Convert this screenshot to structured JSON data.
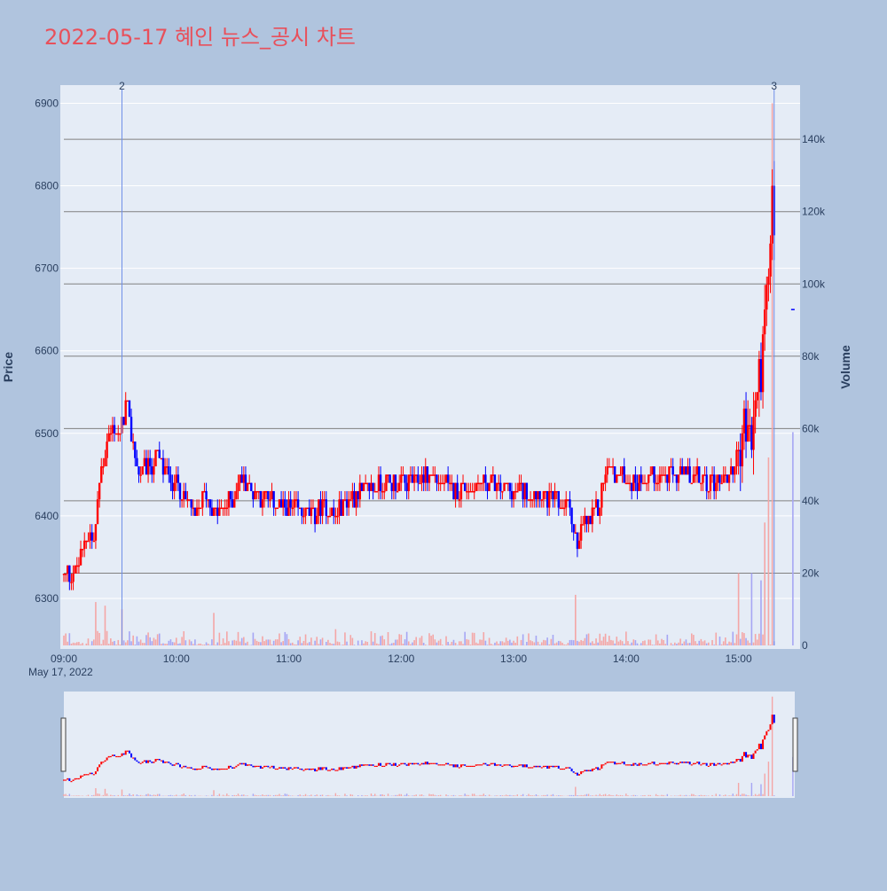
{
  "page": {
    "title": "2022-05-17 혜인 뉴스_공시 차트"
  },
  "colors": {
    "background": "#b0c4de",
    "plot_bg": "#e5ecf6",
    "title": "#e8505b",
    "up": "#ff0000",
    "down": "#0000ff",
    "volume_up": "#f4a6a6",
    "volume_down": "#a6a6f4",
    "marker_line": "#6f8fe8",
    "volume_grid": "#808080"
  },
  "chart_data": {
    "type": "candlestick",
    "xlabel": "",
    "ylabel": "Price",
    "y2label": "Volume",
    "date_label": "May 17, 2022",
    "x_ticks": [
      "09:00",
      "10:00",
      "11:00",
      "12:00",
      "13:00",
      "14:00",
      "15:00"
    ],
    "y_ticks": [
      6300,
      6400,
      6500,
      6600,
      6700,
      6800,
      6900
    ],
    "y2_ticks": [
      "0",
      "20k",
      "40k",
      "60k",
      "80k",
      "100k",
      "120k",
      "140k"
    ],
    "y2_values": [
      0,
      20000,
      40000,
      60000,
      80000,
      100000,
      120000,
      140000
    ],
    "ylim": [
      6243,
      6922
    ],
    "y2lim": [
      0,
      155000
    ],
    "xlim": [
      "09:00",
      "15:30"
    ],
    "markers": [
      {
        "label": "2",
        "time": "09:31"
      },
      {
        "label": "3",
        "time": "15:19"
      }
    ],
    "anchors": [
      [
        "09:00",
        6330
      ],
      [
        "09:04",
        6330
      ],
      [
        "09:08",
        6340
      ],
      [
        "09:12",
        6380
      ],
      [
        "09:16",
        6370
      ],
      [
        "09:20",
        6460
      ],
      [
        "09:23",
        6490
      ],
      [
        "09:27",
        6510
      ],
      [
        "09:30",
        6490
      ],
      [
        "09:33",
        6540
      ],
      [
        "09:36",
        6500
      ],
      [
        "09:40",
        6450
      ],
      [
        "09:45",
        6460
      ],
      [
        "09:50",
        6470
      ],
      [
        "09:55",
        6450
      ],
      [
        "10:00",
        6440
      ],
      [
        "10:05",
        6420
      ],
      [
        "10:10",
        6400
      ],
      [
        "10:15",
        6430
      ],
      [
        "10:20",
        6400
      ],
      [
        "10:25",
        6410
      ],
      [
        "10:30",
        6420
      ],
      [
        "10:35",
        6450
      ],
      [
        "10:40",
        6430
      ],
      [
        "10:50",
        6420
      ],
      [
        "11:00",
        6410
      ],
      [
        "11:10",
        6400
      ],
      [
        "11:20",
        6410
      ],
      [
        "11:25",
        6400
      ],
      [
        "11:30",
        6420
      ],
      [
        "11:40",
        6430
      ],
      [
        "11:50",
        6440
      ],
      [
        "12:00",
        6440
      ],
      [
        "12:15",
        6450
      ],
      [
        "12:30",
        6430
      ],
      [
        "12:45",
        6440
      ],
      [
        "13:00",
        6430
      ],
      [
        "13:10",
        6430
      ],
      [
        "13:20",
        6420
      ],
      [
        "13:30",
        6410
      ],
      [
        "13:34",
        6360
      ],
      [
        "13:37",
        6390
      ],
      [
        "13:40",
        6390
      ],
      [
        "13:45",
        6410
      ],
      [
        "13:50",
        6460
      ],
      [
        "13:55",
        6450
      ],
      [
        "14:05",
        6440
      ],
      [
        "14:15",
        6450
      ],
      [
        "14:30",
        6450
      ],
      [
        "14:45",
        6440
      ],
      [
        "14:55",
        6450
      ],
      [
        "15:00",
        6470
      ],
      [
        "15:03",
        6510
      ],
      [
        "15:06",
        6490
      ],
      [
        "15:08",
        6510
      ],
      [
        "15:10",
        6550
      ],
      [
        "15:12",
        6580
      ],
      [
        "15:14",
        6630
      ],
      [
        "15:16",
        6680
      ],
      [
        "15:18",
        6780
      ],
      [
        "15:19",
        6750
      ]
    ],
    "volume_spikes": [
      [
        "09:17",
        12000
      ],
      [
        "09:22",
        11000
      ],
      [
        "09:31",
        10000
      ],
      [
        "10:20",
        9000
      ],
      [
        "11:25",
        4500
      ],
      [
        "13:33",
        14000
      ],
      [
        "15:00",
        20000
      ],
      [
        "15:07",
        20000
      ],
      [
        "15:12",
        18000
      ],
      [
        "15:14",
        34000
      ],
      [
        "15:16",
        52000
      ],
      [
        "15:18",
        150000
      ]
    ],
    "last_point": {
      "time": "15:29",
      "price": 6650,
      "volume": 59000
    }
  }
}
